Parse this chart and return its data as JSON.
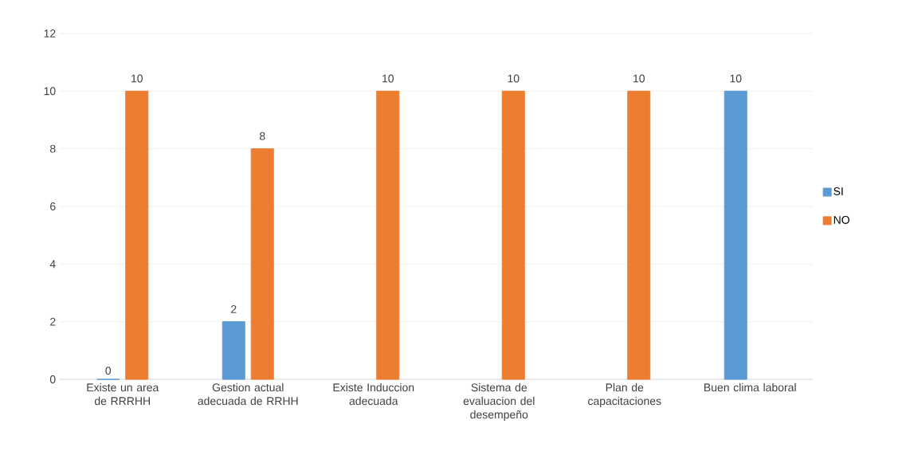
{
  "chart_data": {
    "type": "bar",
    "categories": [
      "Existe un area de RRRHH",
      "Gestion actual adecuada de RRHH",
      "Existe Induccion adecuada",
      "Sistema de evaluacion del desempeño",
      "Plan de capacitaciones",
      "Buen clima laboral"
    ],
    "series": [
      {
        "name": "SI",
        "color": "#5b9bd5",
        "values": [
          0,
          2,
          null,
          null,
          null,
          10
        ],
        "value_labels": [
          "0",
          "2",
          null,
          null,
          null,
          "10"
        ]
      },
      {
        "name": "NO",
        "color": "#ed7d31",
        "values": [
          10,
          8,
          10,
          10,
          10,
          null
        ],
        "value_labels": [
          "10",
          "8",
          "10",
          "10",
          "10",
          null
        ]
      }
    ],
    "ylim": [
      0,
      12
    ],
    "yticks": [
      0,
      2,
      4,
      6,
      8,
      10,
      12
    ],
    "grid": "y",
    "legend": "right"
  }
}
